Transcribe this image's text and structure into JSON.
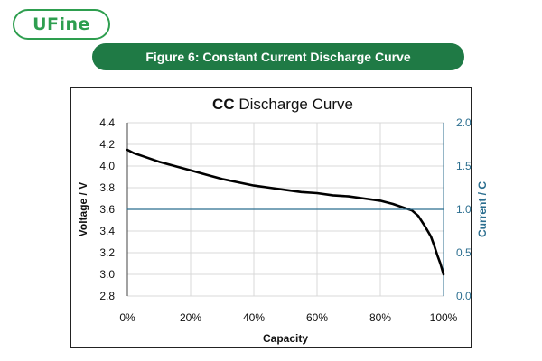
{
  "header": {
    "logo_text": "UFine",
    "figure_title": "Figure 6: Constant Current Discharge Curve"
  },
  "colors": {
    "brand": "#1f7a45",
    "voltage_line": "#000000",
    "current_line": "#2b6e8f"
  },
  "chart_data": {
    "type": "line",
    "title_bold": "CC",
    "title_rest": " Discharge Curve",
    "xlabel": "Capacity",
    "ylabel": "Voltage / V",
    "y2label": "Current / C",
    "xlim": [
      0,
      100
    ],
    "ylim": [
      2.8,
      4.4
    ],
    "y2lim": [
      0,
      2.0
    ],
    "x_ticks": [
      "0%",
      "20%",
      "40%",
      "60%",
      "80%",
      "100%"
    ],
    "y_ticks": [
      "2.8",
      "3.0",
      "3.2",
      "3.4",
      "3.6",
      "3.8",
      "4.0",
      "4.2",
      "4.4"
    ],
    "y2_ticks": [
      "0.0",
      "0.5",
      "1.0",
      "1.5",
      "2.0"
    ],
    "grid": true,
    "series": [
      {
        "axis": "left",
        "x": [
          0,
          2,
          5,
          10,
          15,
          20,
          25,
          30,
          35,
          40,
          45,
          50,
          55,
          60,
          65,
          70,
          75,
          80,
          84,
          87,
          90,
          92,
          94,
          96,
          97,
          98,
          99,
          100
        ],
        "values": [
          4.15,
          4.12,
          4.09,
          4.04,
          4.0,
          3.96,
          3.92,
          3.88,
          3.85,
          3.82,
          3.8,
          3.78,
          3.76,
          3.75,
          3.73,
          3.72,
          3.7,
          3.68,
          3.65,
          3.62,
          3.59,
          3.54,
          3.45,
          3.35,
          3.27,
          3.18,
          3.1,
          3.0
        ]
      },
      {
        "axis": "right",
        "x": [
          0,
          100
        ],
        "values": [
          1.0,
          1.0
        ]
      }
    ]
  }
}
